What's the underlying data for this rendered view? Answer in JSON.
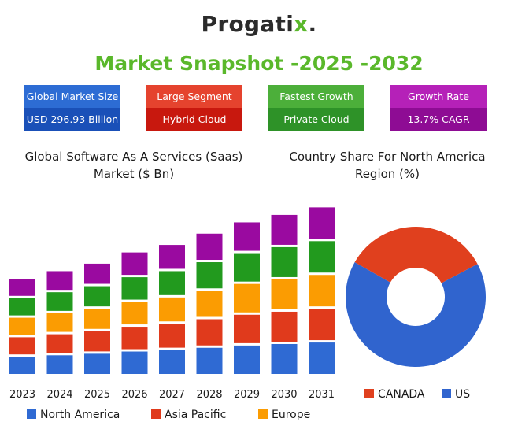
{
  "logo": {
    "text_main": "Progati",
    "text_x": "x",
    "text_dot": "."
  },
  "headline": "Market Snapshot  -2025 -2032",
  "cards": [
    {
      "label": "Global Market Size",
      "value": "USD 296.93 Billion",
      "label_color": "#2d6cd4",
      "value_color": "#1a50b8"
    },
    {
      "label": "Large Segment",
      "value": "Hybrid Cloud",
      "label_color": "#e5432e",
      "value_color": "#c8180e"
    },
    {
      "label": "Fastest Growth",
      "value": "Private Cloud",
      "label_color": "#4caf3a",
      "value_color": "#2e9228"
    },
    {
      "label": "Growth Rate",
      "value": "13.7% CAGR",
      "label_color": "#b521b8",
      "value_color": "#8e0c94"
    }
  ],
  "left_section": {
    "title_line1": "Global Software As A Services (Saas)",
    "title_line2": "Market ($ Bn)"
  },
  "right_section": {
    "title_line1": "Country Share For North  America",
    "title_line2": "Region (%)"
  },
  "chart_data": [
    {
      "type": "bar",
      "stacked": true,
      "title": "Global Software As A Services (Saas) Market ($ Bn)",
      "categories": [
        "2023",
        "2024",
        "2025",
        "2026",
        "2027",
        "2028",
        "2029",
        "2030",
        "2031"
      ],
      "series": [
        {
          "name": "North America",
          "color": "#2f6ad3",
          "values": [
            26,
            28,
            30,
            33,
            35,
            38,
            41,
            43,
            45
          ]
        },
        {
          "name": "Asia Pacific",
          "color": "#e03a1c",
          "values": [
            26,
            28,
            30,
            33,
            35,
            38,
            41,
            43,
            45
          ]
        },
        {
          "color": "#fb9c02",
          "values": [
            26,
            28,
            30,
            33,
            35,
            38,
            41,
            43,
            45
          ]
        },
        {
          "color": "#229a1e",
          "values": [
            26,
            28,
            30,
            33,
            35,
            38,
            41,
            43,
            45
          ]
        },
        {
          "color": "#9a0aa0",
          "values": [
            26,
            28,
            30,
            33,
            35,
            38,
            41,
            43,
            45
          ]
        }
      ],
      "legend_entries": [
        {
          "name": "North America",
          "color": "#2f6ad3"
        },
        {
          "name": "Asia Pacific",
          "color": "#e03a1c"
        },
        {
          "name": "Europe",
          "color": "#fb9c02"
        }
      ],
      "ylim": [
        0,
        260
      ],
      "grid": false,
      "legend_position": "bottom"
    },
    {
      "type": "pie",
      "donut": true,
      "title": "Country Share For North  America Region (%)",
      "slices": [
        {
          "name": "US",
          "value": 66,
          "color": "#3064ce"
        },
        {
          "name": "CANADA",
          "value": 34,
          "color": "#e0401e"
        }
      ],
      "legend_position": "bottom"
    }
  ]
}
